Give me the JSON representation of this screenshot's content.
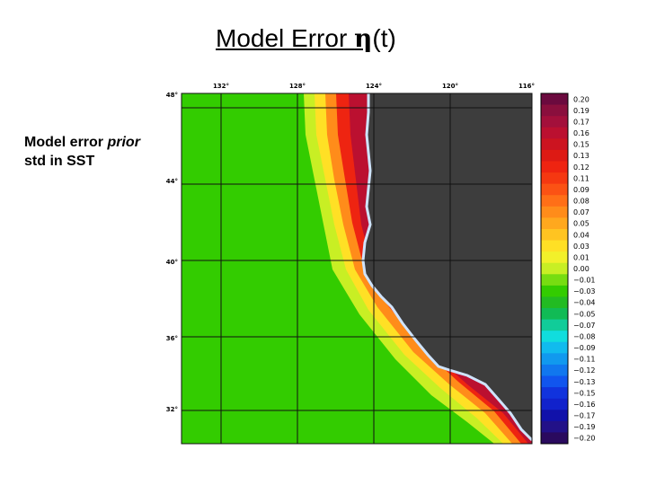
{
  "title": {
    "text": "Model Error ",
    "symbol": "η",
    "suffix": "(t)"
  },
  "side_note": {
    "line1": "Model error ",
    "line1_italic": "prior",
    "line2": "std in SST"
  },
  "map": {
    "lon_labels": [
      "132°",
      "128°",
      "124°",
      "120°",
      "116°"
    ],
    "lat_labels": [
      "48°",
      "44°",
      "40°",
      "36°",
      "32°"
    ],
    "land_color": "#3d3d3d",
    "coast_color": "#cfe4ff",
    "ocean_color": "#33cc00"
  },
  "colorbar": {
    "labels": [
      "0.20",
      "0.19",
      "0.17",
      "0.16",
      "0.15",
      "0.13",
      "0.12",
      "0.11",
      "0.09",
      "0.08",
      "0.07",
      "0.05",
      "0.04",
      "0.03",
      "0.01",
      "0.00",
      "−0.01",
      "−0.03",
      "−0.04",
      "−0.05",
      "−0.07",
      "−0.08",
      "−0.09",
      "−0.11",
      "−0.12",
      "−0.13",
      "−0.15",
      "−0.16",
      "−0.17",
      "−0.19",
      "−0.20"
    ],
    "colors": [
      "#6b0a3e",
      "#8a0f3d",
      "#a3103b",
      "#bb1030",
      "#cc1420",
      "#dd1a14",
      "#ee2411",
      "#f53811",
      "#fb5214",
      "#ff6f17",
      "#ff8c1a",
      "#ffa81e",
      "#ffc421",
      "#ffe025",
      "#f2f02a",
      "#c8ef24",
      "#77dd11",
      "#33cc00",
      "#22bb22",
      "#11bb55",
      "#11cc99",
      "#11dddd",
      "#11bbee",
      "#1199ee",
      "#1177ee",
      "#1155ee",
      "#1133dd",
      "#1122cc",
      "#1111aa",
      "#221188",
      "#2a0a5e"
    ]
  }
}
